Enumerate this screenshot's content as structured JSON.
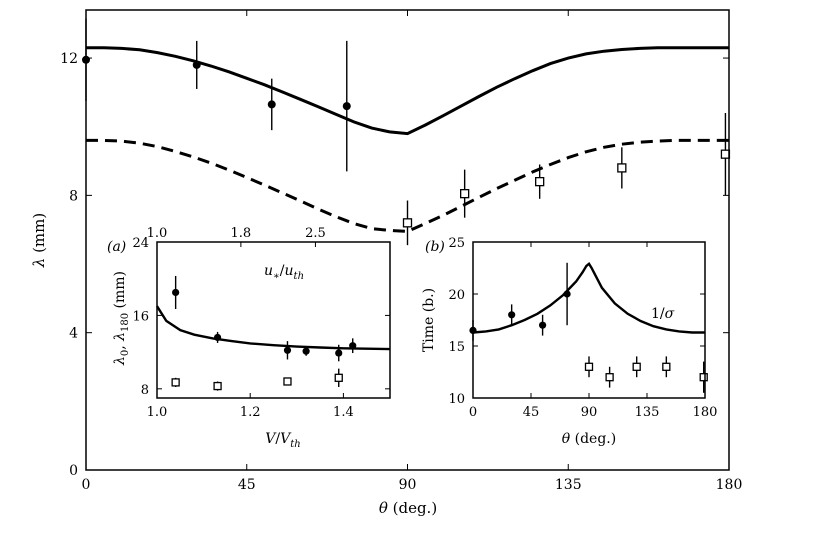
{
  "chart_data": [
    {
      "type": "scatter",
      "panel": "main",
      "xlabel": "θ (deg.)",
      "ylabel": "λ (mm)",
      "xlim": [
        0,
        180
      ],
      "ylim": [
        0,
        13.4
      ],
      "xticks": [
        "0",
        "45",
        "90",
        "135",
        "180"
      ],
      "yticks": [
        "0",
        "4",
        "8",
        "12"
      ],
      "series": [
        {
          "name": "λ fit (solid)",
          "style": "line-solid",
          "x": [
            0,
            5,
            10,
            15,
            20,
            25,
            30,
            35,
            40,
            45,
            50,
            55,
            60,
            65,
            70,
            75,
            80,
            85,
            90,
            95,
            100,
            105,
            110,
            115,
            120,
            125,
            130,
            135,
            140,
            145,
            150,
            155,
            160,
            165,
            170,
            175,
            180
          ],
          "y": [
            12.3,
            12.3,
            12.28,
            12.24,
            12.16,
            12.05,
            11.92,
            11.77,
            11.6,
            11.41,
            11.22,
            11.01,
            10.8,
            10.58,
            10.36,
            10.14,
            9.96,
            9.85,
            9.8,
            10.05,
            10.32,
            10.6,
            10.88,
            11.15,
            11.4,
            11.63,
            11.84,
            12.0,
            12.12,
            12.2,
            12.25,
            12.28,
            12.3,
            12.3,
            12.3,
            12.3,
            12.3
          ]
        },
        {
          "name": "λ fit (dashed)",
          "style": "line-dashed",
          "x": [
            0,
            5,
            10,
            15,
            20,
            25,
            30,
            35,
            40,
            45,
            50,
            55,
            60,
            65,
            70,
            75,
            80,
            85,
            90,
            95,
            100,
            105,
            110,
            115,
            120,
            125,
            130,
            135,
            140,
            145,
            150,
            155,
            160,
            165,
            170,
            175,
            180
          ],
          "y": [
            9.6,
            9.6,
            9.58,
            9.52,
            9.42,
            9.28,
            9.12,
            8.94,
            8.74,
            8.52,
            8.3,
            8.07,
            7.84,
            7.6,
            7.38,
            7.18,
            7.03,
            6.98,
            6.95,
            7.18,
            7.42,
            7.68,
            7.94,
            8.2,
            8.44,
            8.68,
            8.9,
            9.1,
            9.27,
            9.4,
            9.49,
            9.55,
            9.58,
            9.6,
            9.6,
            9.6,
            9.6
          ]
        },
        {
          "name": "filled circles",
          "style": "marker-circle",
          "x": [
            0,
            31,
            52,
            73
          ],
          "y": [
            11.95,
            11.8,
            10.65,
            10.6
          ],
          "err": [
            1.2,
            0.7,
            0.75,
            1.9
          ]
        },
        {
          "name": "open squares",
          "style": "marker-square",
          "x": [
            90,
            106,
            127,
            150,
            179
          ],
          "y": [
            7.2,
            8.05,
            8.4,
            8.8,
            9.2
          ],
          "err": [
            0.65,
            0.7,
            0.5,
            0.6,
            1.2
          ]
        }
      ]
    },
    {
      "type": "scatter",
      "panel": "inset-a",
      "panel_label": "(a)",
      "xlabel": "V/V_th",
      "x2label": "u∗/u_th",
      "ylabel": "λ0, λ180 (mm)",
      "xlim": [
        1.0,
        1.5
      ],
      "ylim": [
        7,
        24
      ],
      "xticks": [
        "1.0",
        "1.2",
        "1.4"
      ],
      "x2ticks": [
        "1.0",
        "1.8",
        "2.5"
      ],
      "yticks": [
        "8",
        "16",
        "24"
      ],
      "series": [
        {
          "name": "fit",
          "style": "line-solid",
          "x": [
            1.0,
            1.02,
            1.05,
            1.08,
            1.12,
            1.16,
            1.2,
            1.25,
            1.3,
            1.35,
            1.4,
            1.45,
            1.5
          ],
          "y": [
            17.0,
            15.4,
            14.4,
            13.9,
            13.5,
            13.2,
            12.95,
            12.75,
            12.6,
            12.5,
            12.42,
            12.37,
            12.33
          ]
        },
        {
          "name": "filled circles",
          "style": "marker-circle",
          "x": [
            1.04,
            1.13,
            1.28,
            1.32,
            1.39,
            1.42
          ],
          "y": [
            18.5,
            13.6,
            12.2,
            12.1,
            11.9,
            12.7
          ],
          "err": [
            1.8,
            0.6,
            1.0,
            0.5,
            0.9,
            0.8
          ]
        },
        {
          "name": "open squares",
          "style": "marker-square",
          "x": [
            1.04,
            1.13,
            1.28,
            1.39
          ],
          "y": [
            8.7,
            8.3,
            8.8,
            9.2
          ],
          "err": [
            0.5,
            0.5,
            0.4,
            1.0
          ]
        }
      ]
    },
    {
      "type": "scatter",
      "panel": "inset-b",
      "panel_label": "(b)",
      "xlabel": "θ (deg.)",
      "ylabel": "Time (b.)",
      "xlim": [
        0,
        180
      ],
      "ylim": [
        10,
        25
      ],
      "xticks": [
        "0",
        "45",
        "90",
        "135",
        "180"
      ],
      "yticks": [
        "10",
        "15",
        "20",
        "25"
      ],
      "annotation": "1/σ",
      "series": [
        {
          "name": "1/σ",
          "style": "line-solid",
          "x": [
            0,
            10,
            20,
            30,
            40,
            50,
            60,
            70,
            80,
            85,
            88,
            90,
            92,
            95,
            100,
            110,
            120,
            130,
            140,
            150,
            160,
            170,
            180
          ],
          "y": [
            16.3,
            16.4,
            16.6,
            17.0,
            17.5,
            18.1,
            18.9,
            19.9,
            21.2,
            22.1,
            22.7,
            22.9,
            22.5,
            21.8,
            20.6,
            19.1,
            18.1,
            17.4,
            16.9,
            16.6,
            16.4,
            16.3,
            16.3
          ]
        },
        {
          "name": "filled circles",
          "style": "marker-circle",
          "x": [
            0,
            30,
            54,
            73
          ],
          "y": [
            16.5,
            18.0,
            17.0,
            20.0
          ],
          "err": [
            1.0,
            1.0,
            1.0,
            3.0
          ]
        },
        {
          "name": "open squares",
          "style": "marker-square",
          "x": [
            90,
            106,
            127,
            150,
            179
          ],
          "y": [
            13.0,
            12.0,
            13.0,
            13.0,
            12.0
          ],
          "err": [
            1.0,
            1.0,
            1.0,
            1.0,
            1.5
          ]
        }
      ]
    }
  ]
}
